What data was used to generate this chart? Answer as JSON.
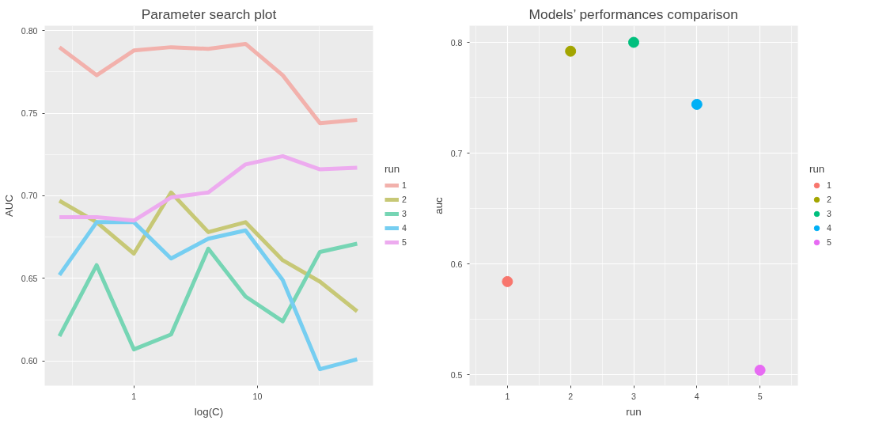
{
  "chart_data": [
    {
      "type": "line",
      "title": "Parameter search plot",
      "xlabel": "log(C)",
      "ylabel": "AUC",
      "legend_title": "run",
      "log": "x",
      "grid": true,
      "legend": "right",
      "x": [
        0.25,
        0.5,
        1,
        2,
        4,
        8,
        16,
        32,
        64
      ],
      "xlim": [
        0.19,
        86
      ],
      "xticks": [
        1,
        10
      ],
      "ylim": [
        0.585,
        0.803
      ],
      "yticks": [
        {
          "value": 0.6,
          "label": "0.60"
        },
        {
          "value": 0.65,
          "label": "0.65"
        },
        {
          "value": 0.7,
          "label": "0.70"
        },
        {
          "value": 0.75,
          "label": "0.75"
        },
        {
          "value": 0.8,
          "label": "0.80"
        }
      ],
      "series": [
        {
          "name": "1",
          "color": "#f2b1ac",
          "values": [
            0.79,
            0.773,
            0.788,
            0.79,
            0.789,
            0.792,
            0.773,
            0.744,
            0.746
          ]
        },
        {
          "name": "2",
          "color": "#c7c876",
          "values": [
            0.697,
            0.684,
            0.665,
            0.702,
            0.678,
            0.684,
            0.661,
            0.648,
            0.63
          ]
        },
        {
          "name": "3",
          "color": "#76d5b4",
          "values": [
            0.615,
            0.658,
            0.607,
            0.616,
            0.668,
            0.639,
            0.624,
            0.666,
            0.671
          ]
        },
        {
          "name": "4",
          "color": "#76cef1",
          "values": [
            0.652,
            0.684,
            0.684,
            0.662,
            0.674,
            0.679,
            0.649,
            0.595,
            0.601
          ]
        },
        {
          "name": "5",
          "color": "#edabef",
          "values": [
            0.687,
            0.687,
            0.685,
            0.699,
            0.702,
            0.719,
            0.724,
            0.716,
            0.717
          ]
        }
      ]
    },
    {
      "type": "scatter",
      "title": "Models’ performances comparison",
      "xlabel": "run",
      "ylabel": "auc",
      "legend_title": "run",
      "grid": true,
      "legend": "right",
      "marker": "circle",
      "xlim": [
        0.4,
        5.6
      ],
      "xticks": [
        1,
        2,
        3,
        4,
        5
      ],
      "ylim": [
        0.49,
        0.815
      ],
      "yticks": [
        0.5,
        0.6,
        0.7,
        0.8
      ],
      "series": [
        {
          "name": "1",
          "color": "#f8766d",
          "x": [
            1
          ],
          "values": [
            0.584
          ]
        },
        {
          "name": "2",
          "color": "#a3a500",
          "x": [
            2
          ],
          "values": [
            0.792
          ]
        },
        {
          "name": "3",
          "color": "#00bf7d",
          "x": [
            3
          ],
          "values": [
            0.8
          ]
        },
        {
          "name": "4",
          "color": "#00b0f6",
          "x": [
            4
          ],
          "values": [
            0.744
          ]
        },
        {
          "name": "5",
          "color": "#e76bf3",
          "x": [
            5
          ],
          "values": [
            0.504
          ]
        }
      ]
    }
  ]
}
